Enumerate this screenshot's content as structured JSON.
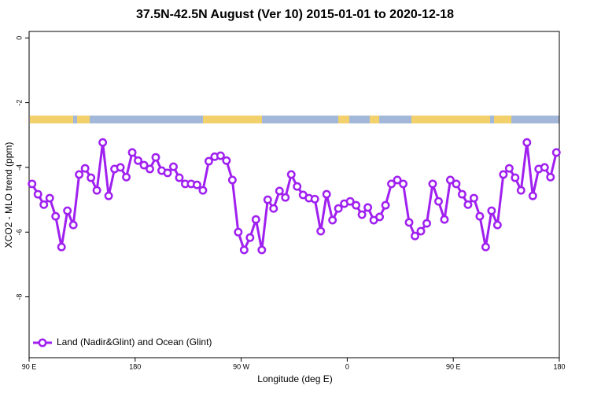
{
  "chart_data": {
    "type": "line",
    "title": "37.5N-42.5N August (Ver 10)   2015-01-01 to 2020-12-18",
    "x_label": "Longitude (deg E)",
    "y_label": "XCO2 - MLO trend (ppm)",
    "xlim": [
      90,
      540
    ],
    "ylim": [
      -9.88,
      0.2
    ],
    "xticks": [
      {
        "value": 90,
        "label": "90 E"
      },
      {
        "value": 180,
        "label": "180"
      },
      {
        "value": 270,
        "label": "90 W"
      },
      {
        "value": 360,
        "label": "0"
      },
      {
        "value": 450,
        "label": "90 E"
      },
      {
        "value": 540,
        "label": "180"
      }
    ],
    "yticks": [
      0,
      -2,
      -4,
      -6,
      -8
    ],
    "legend_position": "bottom-left",
    "x": [
      92.5,
      97.5,
      102.5,
      107.5,
      112.5,
      117.5,
      122.5,
      127.5,
      132.5,
      137.5,
      142.5,
      147.5,
      152.5,
      157.5,
      162.5,
      167.5,
      172.5,
      177.5,
      182.5,
      187.5,
      192.5,
      197.5,
      202.5,
      207.5,
      212.5,
      217.5,
      222.5,
      227.5,
      232.5,
      237.5,
      242.5,
      247.5,
      252.5,
      257.5,
      262.5,
      267.5,
      272.5,
      277.5,
      282.5,
      287.5,
      292.5,
      297.5,
      302.5,
      307.5,
      312.5,
      317.5,
      322.5,
      327.5,
      332.5,
      337.5,
      342.5,
      347.5,
      352.5,
      357.5,
      362.5,
      367.5,
      372.5,
      377.5,
      382.5,
      387.5,
      392.5,
      397.5,
      402.5,
      407.5,
      412.5,
      417.5,
      422.5,
      427.5,
      432.5,
      437.5,
      442.5,
      447.5,
      452.5,
      457.5,
      462.5,
      467.5,
      472.5,
      477.5,
      482.5,
      487.5,
      492.5,
      497.5,
      502.5,
      507.5,
      512.5,
      517.5,
      522.5,
      527.5,
      532.5,
      537.5
    ],
    "series": [
      {
        "name": "Land (Nadir&Glint) and Ocean (Glint)",
        "color": "#a020f0",
        "values": [
          -4.51,
          -4.83,
          -5.15,
          -4.95,
          -5.51,
          -6.46,
          -5.34,
          -5.78,
          -4.22,
          -4.03,
          -4.32,
          -4.71,
          -3.23,
          -4.88,
          -4.05,
          -4.0,
          -4.3,
          -3.54,
          -3.79,
          -3.93,
          -4.05,
          -3.69,
          -4.1,
          -4.17,
          -3.98,
          -4.32,
          -4.51,
          -4.51,
          -4.54,
          -4.71,
          -3.81,
          -3.67,
          -3.64,
          -3.79,
          -4.39,
          -6.0,
          -6.55,
          -6.17,
          -5.61,
          -6.55,
          -5.0,
          -5.27,
          -4.73,
          -4.93,
          -4.22,
          -4.59,
          -4.85,
          -4.95,
          -4.98,
          -5.97,
          -4.83,
          -5.63,
          -5.27,
          -5.12,
          -5.05,
          -5.17,
          -5.46,
          -5.24,
          -5.63,
          -5.53,
          -5.17,
          -4.51,
          -4.39,
          -4.51,
          -5.7,
          -6.12,
          -5.97,
          -5.73,
          -4.51,
          -5.05,
          -5.61,
          -4.39,
          -4.51,
          -4.83,
          -5.15,
          -4.95,
          -5.51,
          -6.46,
          -5.34,
          -5.78,
          -4.22,
          -4.03,
          -4.32,
          -4.71,
          -3.23,
          -4.88,
          -4.05,
          -4.0,
          -4.3,
          -3.54
        ]
      }
    ]
  }
}
